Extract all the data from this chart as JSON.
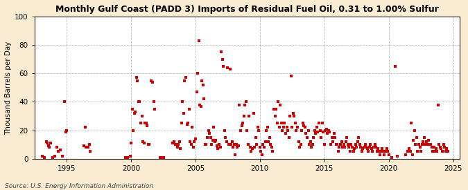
{
  "title": "Monthly Gulf Coast (PADD 3) Imports of Residual Fuel Oil, 0.31 to 1.00% Sulfur",
  "ylabel": "Thousand Barrels per Day",
  "source": "Source: U.S. Energy Information Administration",
  "background_color": "#faecd2",
  "plot_bg_color": "#ffffff",
  "marker_color": "#cc0000",
  "grid_color": "#aaaaaa",
  "ylim": [
    0,
    100
  ],
  "yticks": [
    0,
    20,
    40,
    60,
    80,
    100
  ],
  "xlim_start": 1992.5,
  "xlim_end": 2025.5,
  "xticks": [
    1995,
    2000,
    2005,
    2010,
    2015,
    2020,
    2025
  ],
  "data": [
    [
      1993.083,
      2
    ],
    [
      1993.25,
      1
    ],
    [
      1993.417,
      12
    ],
    [
      1993.5,
      11
    ],
    [
      1993.583,
      9
    ],
    [
      1993.667,
      8
    ],
    [
      1993.75,
      11
    ],
    [
      1993.917,
      1
    ],
    [
      1994.083,
      2
    ],
    [
      1994.25,
      8
    ],
    [
      1994.333,
      5
    ],
    [
      1994.5,
      6
    ],
    [
      1994.667,
      2
    ],
    [
      1994.833,
      40
    ],
    [
      1994.917,
      19
    ],
    [
      1995.0,
      20
    ],
    [
      1996.333,
      9
    ],
    [
      1996.417,
      22
    ],
    [
      1996.5,
      8
    ],
    [
      1996.667,
      8
    ],
    [
      1996.75,
      10
    ],
    [
      1996.833,
      5
    ],
    [
      1999.583,
      1
    ],
    [
      1999.75,
      1
    ],
    [
      1999.917,
      2
    ],
    [
      2000.0,
      11
    ],
    [
      2000.083,
      35
    ],
    [
      2000.167,
      20
    ],
    [
      2000.25,
      32
    ],
    [
      2000.333,
      33
    ],
    [
      2000.417,
      57
    ],
    [
      2000.5,
      55
    ],
    [
      2000.583,
      40
    ],
    [
      2000.667,
      40
    ],
    [
      2000.75,
      25
    ],
    [
      2000.833,
      30
    ],
    [
      2000.917,
      12
    ],
    [
      2001.0,
      11
    ],
    [
      2001.083,
      25
    ],
    [
      2001.167,
      25
    ],
    [
      2001.25,
      23
    ],
    [
      2001.333,
      10
    ],
    [
      2001.417,
      10
    ],
    [
      2001.583,
      55
    ],
    [
      2001.667,
      54
    ],
    [
      2001.75,
      40
    ],
    [
      2001.833,
      35
    ],
    [
      2002.25,
      1
    ],
    [
      2002.417,
      1
    ],
    [
      2002.5,
      1
    ],
    [
      2003.25,
      11
    ],
    [
      2003.333,
      12
    ],
    [
      2003.417,
      10
    ],
    [
      2003.5,
      10
    ],
    [
      2003.583,
      8
    ],
    [
      2003.667,
      10
    ],
    [
      2003.75,
      12
    ],
    [
      2003.833,
      7
    ],
    [
      2003.917,
      25
    ],
    [
      2004.0,
      40
    ],
    [
      2004.083,
      32
    ],
    [
      2004.167,
      55
    ],
    [
      2004.25,
      57
    ],
    [
      2004.333,
      24
    ],
    [
      2004.417,
      25
    ],
    [
      2004.5,
      35
    ],
    [
      2004.583,
      12
    ],
    [
      2004.667,
      10
    ],
    [
      2004.75,
      22
    ],
    [
      2004.833,
      8
    ],
    [
      2004.917,
      12
    ],
    [
      2005.0,
      14
    ],
    [
      2005.083,
      47
    ],
    [
      2005.167,
      60
    ],
    [
      2005.25,
      83
    ],
    [
      2005.333,
      38
    ],
    [
      2005.417,
      37
    ],
    [
      2005.5,
      55
    ],
    [
      2005.583,
      52
    ],
    [
      2005.667,
      42
    ],
    [
      2005.75,
      10
    ],
    [
      2005.833,
      10
    ],
    [
      2005.917,
      15
    ],
    [
      2006.0,
      20
    ],
    [
      2006.083,
      18
    ],
    [
      2006.167,
      15
    ],
    [
      2006.25,
      10
    ],
    [
      2006.333,
      13
    ],
    [
      2006.417,
      22
    ],
    [
      2006.5,
      12
    ],
    [
      2006.583,
      13
    ],
    [
      2006.667,
      9
    ],
    [
      2006.75,
      7
    ],
    [
      2006.833,
      10
    ],
    [
      2006.917,
      8
    ],
    [
      2007.0,
      75
    ],
    [
      2007.083,
      70
    ],
    [
      2007.167,
      65
    ],
    [
      2007.25,
      20
    ],
    [
      2007.333,
      15
    ],
    [
      2007.417,
      12
    ],
    [
      2007.5,
      64
    ],
    [
      2007.583,
      10
    ],
    [
      2007.667,
      63
    ],
    [
      2007.75,
      10
    ],
    [
      2007.833,
      12
    ],
    [
      2007.917,
      8
    ],
    [
      2008.0,
      10
    ],
    [
      2008.083,
      3
    ],
    [
      2008.167,
      10
    ],
    [
      2008.25,
      8
    ],
    [
      2008.333,
      9
    ],
    [
      2008.417,
      38
    ],
    [
      2008.5,
      20
    ],
    [
      2008.583,
      23
    ],
    [
      2008.667,
      25
    ],
    [
      2008.75,
      30
    ],
    [
      2008.833,
      38
    ],
    [
      2008.917,
      40
    ],
    [
      2009.0,
      20
    ],
    [
      2009.083,
      10
    ],
    [
      2009.167,
      30
    ],
    [
      2009.25,
      8
    ],
    [
      2009.333,
      5
    ],
    [
      2009.417,
      7
    ],
    [
      2009.5,
      32
    ],
    [
      2009.583,
      8
    ],
    [
      2009.667,
      15
    ],
    [
      2009.75,
      10
    ],
    [
      2009.833,
      22
    ],
    [
      2009.917,
      20
    ],
    [
      2010.0,
      8
    ],
    [
      2010.083,
      5
    ],
    [
      2010.167,
      3
    ],
    [
      2010.25,
      10
    ],
    [
      2010.333,
      8
    ],
    [
      2010.417,
      12
    ],
    [
      2010.5,
      20
    ],
    [
      2010.583,
      22
    ],
    [
      2010.667,
      12
    ],
    [
      2010.75,
      15
    ],
    [
      2010.833,
      10
    ],
    [
      2010.917,
      8
    ],
    [
      2011.0,
      5
    ],
    [
      2011.083,
      35
    ],
    [
      2011.167,
      30
    ],
    [
      2011.25,
      35
    ],
    [
      2011.333,
      25
    ],
    [
      2011.417,
      40
    ],
    [
      2011.5,
      22
    ],
    [
      2011.583,
      38
    ],
    [
      2011.667,
      25
    ],
    [
      2011.75,
      20
    ],
    [
      2011.833,
      22
    ],
    [
      2011.917,
      25
    ],
    [
      2012.0,
      18
    ],
    [
      2012.083,
      22
    ],
    [
      2012.167,
      20
    ],
    [
      2012.25,
      15
    ],
    [
      2012.333,
      30
    ],
    [
      2012.417,
      58
    ],
    [
      2012.5,
      22
    ],
    [
      2012.583,
      32
    ],
    [
      2012.667,
      30
    ],
    [
      2012.75,
      25
    ],
    [
      2012.833,
      20
    ],
    [
      2012.917,
      22
    ],
    [
      2013.0,
      12
    ],
    [
      2013.083,
      8
    ],
    [
      2013.167,
      10
    ],
    [
      2013.25,
      20
    ],
    [
      2013.333,
      25
    ],
    [
      2013.417,
      23
    ],
    [
      2013.5,
      22
    ],
    [
      2013.583,
      18
    ],
    [
      2013.667,
      15
    ],
    [
      2013.75,
      20
    ],
    [
      2013.833,
      10
    ],
    [
      2013.917,
      12
    ],
    [
      2014.0,
      8
    ],
    [
      2014.083,
      10
    ],
    [
      2014.167,
      15
    ],
    [
      2014.25,
      20
    ],
    [
      2014.333,
      18
    ],
    [
      2014.417,
      22
    ],
    [
      2014.5,
      19
    ],
    [
      2014.583,
      25
    ],
    [
      2014.667,
      20
    ],
    [
      2014.75,
      15
    ],
    [
      2014.833,
      25
    ],
    [
      2014.917,
      19
    ],
    [
      2015.0,
      10
    ],
    [
      2015.083,
      20
    ],
    [
      2015.167,
      21
    ],
    [
      2015.25,
      18
    ],
    [
      2015.333,
      20
    ],
    [
      2015.417,
      19
    ],
    [
      2015.5,
      10
    ],
    [
      2015.583,
      15
    ],
    [
      2015.667,
      12
    ],
    [
      2015.75,
      18
    ],
    [
      2015.833,
      15
    ],
    [
      2015.917,
      10
    ],
    [
      2016.0,
      10
    ],
    [
      2016.083,
      5
    ],
    [
      2016.167,
      8
    ],
    [
      2016.25,
      10
    ],
    [
      2016.333,
      12
    ],
    [
      2016.417,
      8
    ],
    [
      2016.5,
      10
    ],
    [
      2016.583,
      8
    ],
    [
      2016.667,
      12
    ],
    [
      2016.75,
      15
    ],
    [
      2016.833,
      10
    ],
    [
      2016.917,
      8
    ],
    [
      2017.0,
      5
    ],
    [
      2017.083,
      10
    ],
    [
      2017.167,
      8
    ],
    [
      2017.25,
      5
    ],
    [
      2017.333,
      7
    ],
    [
      2017.417,
      10
    ],
    [
      2017.5,
      8
    ],
    [
      2017.583,
      12
    ],
    [
      2017.667,
      15
    ],
    [
      2017.75,
      10
    ],
    [
      2017.833,
      8
    ],
    [
      2017.917,
      5
    ],
    [
      2018.0,
      7
    ],
    [
      2018.083,
      8
    ],
    [
      2018.167,
      10
    ],
    [
      2018.25,
      8
    ],
    [
      2018.333,
      7
    ],
    [
      2018.417,
      5
    ],
    [
      2018.5,
      8
    ],
    [
      2018.583,
      10
    ],
    [
      2018.667,
      7
    ],
    [
      2018.75,
      5
    ],
    [
      2018.833,
      8
    ],
    [
      2018.917,
      10
    ],
    [
      2019.0,
      8
    ],
    [
      2019.083,
      5
    ],
    [
      2019.167,
      7
    ],
    [
      2019.25,
      5
    ],
    [
      2019.333,
      3
    ],
    [
      2019.417,
      5
    ],
    [
      2019.5,
      7
    ],
    [
      2019.583,
      5
    ],
    [
      2019.667,
      3
    ],
    [
      2019.75,
      5
    ],
    [
      2019.833,
      7
    ],
    [
      2019.917,
      5
    ],
    [
      2020.0,
      3
    ],
    [
      2020.25,
      1
    ],
    [
      2020.5,
      65
    ],
    [
      2020.667,
      2
    ],
    [
      2021.333,
      3
    ],
    [
      2021.5,
      5
    ],
    [
      2021.583,
      7
    ],
    [
      2021.667,
      5
    ],
    [
      2021.75,
      25
    ],
    [
      2021.833,
      3
    ],
    [
      2021.917,
      13
    ],
    [
      2022.0,
      20
    ],
    [
      2022.083,
      10
    ],
    [
      2022.167,
      15
    ],
    [
      2022.25,
      5
    ],
    [
      2022.333,
      10
    ],
    [
      2022.417,
      8
    ],
    [
      2022.5,
      5
    ],
    [
      2022.583,
      10
    ],
    [
      2022.667,
      12
    ],
    [
      2022.75,
      15
    ],
    [
      2022.833,
      10
    ],
    [
      2022.917,
      12
    ],
    [
      2023.0,
      10
    ],
    [
      2023.083,
      13
    ],
    [
      2023.167,
      10
    ],
    [
      2023.25,
      10
    ],
    [
      2023.333,
      8
    ],
    [
      2023.417,
      5
    ],
    [
      2023.5,
      8
    ],
    [
      2023.583,
      5
    ],
    [
      2023.667,
      7
    ],
    [
      2023.75,
      5
    ],
    [
      2023.833,
      38
    ],
    [
      2023.917,
      10
    ],
    [
      2024.0,
      8
    ],
    [
      2024.083,
      7
    ],
    [
      2024.167,
      5
    ],
    [
      2024.25,
      10
    ],
    [
      2024.333,
      8
    ],
    [
      2024.417,
      5
    ],
    [
      2024.5,
      7
    ],
    [
      2024.583,
      5
    ]
  ]
}
